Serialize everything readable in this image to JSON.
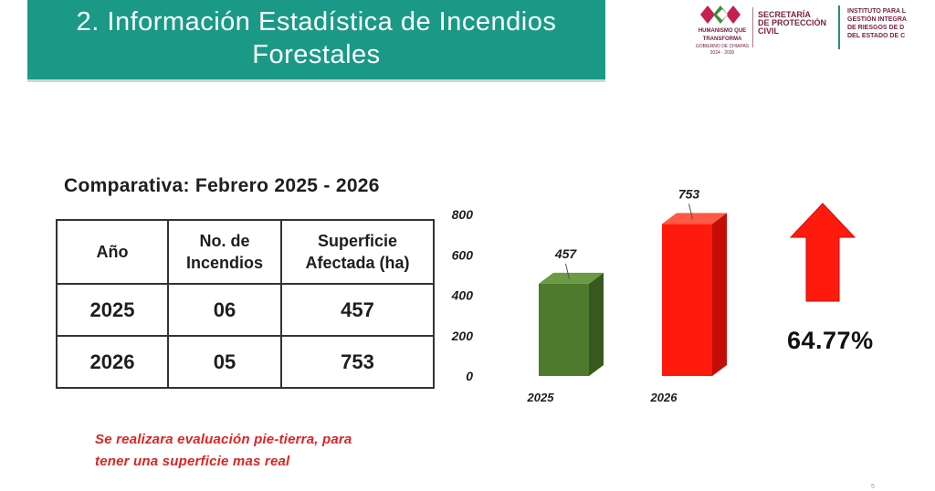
{
  "header": {
    "title_line1": "2. Información Estadística de Incendios",
    "title_line2": "Forestales"
  },
  "logos": {
    "left_lines": [
      "HUMANISMO QUE",
      "TRANSFORMA",
      "GOBIERNO DE CHIAPAS",
      "2024 · 2030"
    ],
    "mid_lines": [
      "SECRETARÍA",
      "DE PROTECCIÓN",
      "CIVIL"
    ],
    "right_lines": [
      "INSTITUTO PARA L",
      "GESTIÓN INTEGRA",
      "DE RIESGOS DE D",
      "DEL ESTADO DE C"
    ]
  },
  "table": {
    "title": "Comparativa: Febrero 2025 - 2026",
    "headers": [
      "Año",
      "No. de Incendios",
      "Superficie Afectada (ha)"
    ],
    "rows": [
      [
        "2025",
        "06",
        "457"
      ],
      [
        "2026",
        "05",
        "753"
      ]
    ]
  },
  "chart_data": {
    "type": "bar",
    "categories": [
      "2025",
      "2026"
    ],
    "values": [
      457,
      753
    ],
    "ylim": [
      0,
      800
    ],
    "yticks": [
      0,
      200,
      400,
      600,
      800
    ],
    "colors": [
      "#4e7a2e",
      "#ff1a0e"
    ],
    "side_colors": [
      "#37591f",
      "#c40d06"
    ],
    "top_colors": [
      "#6d9a45",
      "#ff5a45"
    ],
    "grid": false,
    "change_label": "64.77%",
    "arrow_color": "#ff1a0e"
  },
  "note": {
    "line1": "Se realizara evaluación pie-tierra, para",
    "line2": "tener una superficie mas real"
  },
  "page_number": "5"
}
